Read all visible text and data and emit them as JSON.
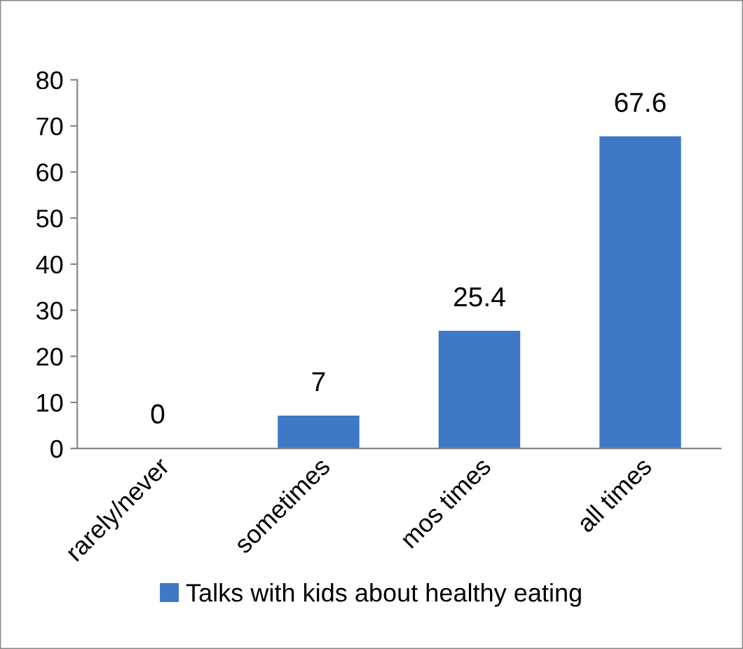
{
  "chart_data": {
    "type": "bar",
    "categories": [
      "rarely/never",
      "sometimes",
      "mos times",
      "all times"
    ],
    "series": [
      {
        "name": "Talks with kids about healthy eating",
        "color": "#3f78c4",
        "values": [
          0,
          7,
          25.4,
          67.6
        ]
      }
    ],
    "ylim": [
      0,
      80
    ],
    "yticks": [
      0,
      10,
      20,
      30,
      40,
      50,
      60,
      70,
      80
    ],
    "data_labels": true,
    "grid": false,
    "legend": "bottom"
  }
}
